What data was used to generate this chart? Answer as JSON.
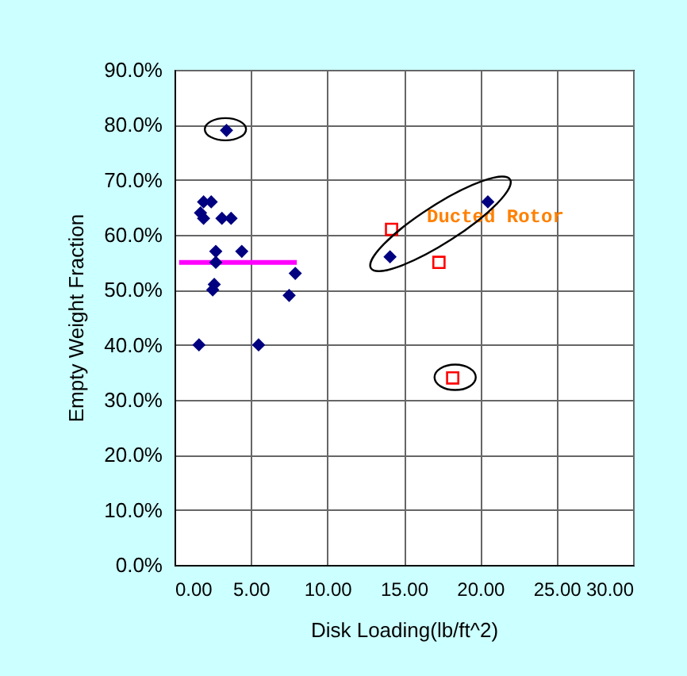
{
  "chart_data": {
    "type": "scatter",
    "xlabel": "Disk Loading(lb/ft^2)",
    "ylabel": "Empty Weight Fraction",
    "xlim": [
      0,
      30
    ],
    "xticks": [
      {
        "value": 0,
        "label": "0.00"
      },
      {
        "value": 5,
        "label": "5.00"
      },
      {
        "value": 10,
        "label": "10.00"
      },
      {
        "value": 15,
        "label": "15.00"
      },
      {
        "value": 20,
        "label": "20.00"
      },
      {
        "value": 25,
        "label": "25.00"
      },
      {
        "value": 30,
        "label": "30.00"
      }
    ],
    "ylim": [
      0,
      90
    ],
    "yticks": [
      {
        "value": 0,
        "label": "0.0%"
      },
      {
        "value": 10,
        "label": "10.0%"
      },
      {
        "value": 20,
        "label": "20.0%"
      },
      {
        "value": 30,
        "label": "30.0%"
      },
      {
        "value": 40,
        "label": "40.0%"
      },
      {
        "value": 50,
        "label": "50.0%"
      },
      {
        "value": 60,
        "label": "60.0%"
      },
      {
        "value": 70,
        "label": "70.0%"
      },
      {
        "value": 80,
        "label": "80.0%"
      },
      {
        "value": 90,
        "label": "90.0%"
      }
    ],
    "grid": true,
    "series": [
      {
        "marker": "diamond",
        "color": "#000080",
        "x": [
          1.6,
          5.5,
          3.4,
          1.7,
          1.9,
          1.9,
          2.4,
          3.1,
          3.7,
          2.7,
          4.4,
          2.7,
          2.6,
          2.5,
          7.5,
          7.9,
          14.1,
          20.5
        ],
        "values": [
          40,
          40,
          79,
          64,
          63,
          66,
          66,
          63,
          63,
          57,
          57,
          55,
          51,
          50,
          49,
          53,
          56,
          66
        ]
      },
      {
        "marker": "square",
        "color": "#ff0000",
        "x": [
          14.2,
          17.3,
          18.2
        ],
        "values": [
          61,
          55,
          34
        ]
      },
      {
        "type": "line",
        "color": "#ff00ff",
        "x": [
          0.3,
          8
        ],
        "values": [
          55,
          55
        ]
      }
    ],
    "annotations": [
      "Ducted Rotor"
    ]
  }
}
